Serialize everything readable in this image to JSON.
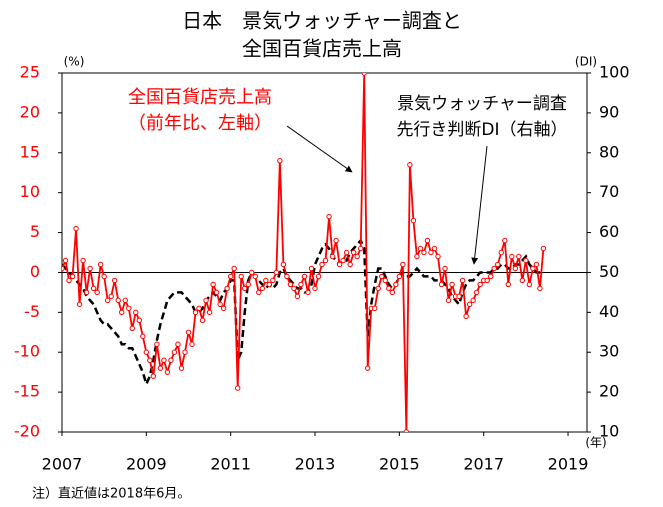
{
  "chart_data": {
    "type": "line",
    "title": [
      "日本　景気ウォッチャー調査と",
      "全国百貨店売上高"
    ],
    "y_label": "(%)",
    "y2_label": "(DI)",
    "x_label": "(年)",
    "note": "注）直近値は2018年6月。",
    "xlim": [
      2007,
      2019.45
    ],
    "xticks": [
      2007,
      2009,
      2011,
      2013,
      2015,
      2017,
      2019
    ],
    "ylim": [
      -20,
      25
    ],
    "yticks": [
      25,
      20,
      15,
      10,
      5,
      0,
      -5,
      -10,
      -15,
      -20
    ],
    "y2lim": [
      10,
      100
    ],
    "y2ticks": [
      100,
      90,
      80,
      70,
      60,
      50,
      40,
      30,
      20,
      10
    ],
    "x": [
      "2007-01",
      "2007-02",
      "2007-03",
      "2007-04",
      "2007-05",
      "2007-06",
      "2007-07",
      "2007-08",
      "2007-09",
      "2007-10",
      "2007-11",
      "2007-12",
      "2008-01",
      "2008-02",
      "2008-03",
      "2008-04",
      "2008-05",
      "2008-06",
      "2008-07",
      "2008-08",
      "2008-09",
      "2008-10",
      "2008-11",
      "2008-12",
      "2009-01",
      "2009-02",
      "2009-03",
      "2009-04",
      "2009-05",
      "2009-06",
      "2009-07",
      "2009-08",
      "2009-09",
      "2009-10",
      "2009-11",
      "2009-12",
      "2010-01",
      "2010-02",
      "2010-03",
      "2010-04",
      "2010-05",
      "2010-06",
      "2010-07",
      "2010-08",
      "2010-09",
      "2010-10",
      "2010-11",
      "2010-12",
      "2011-01",
      "2011-02",
      "2011-03",
      "2011-04",
      "2011-05",
      "2011-06",
      "2011-07",
      "2011-08",
      "2011-09",
      "2011-10",
      "2011-11",
      "2011-12",
      "2012-01",
      "2012-02",
      "2012-03",
      "2012-04",
      "2012-05",
      "2012-06",
      "2012-07",
      "2012-08",
      "2012-09",
      "2012-10",
      "2012-11",
      "2012-12",
      "2013-01",
      "2013-02",
      "2013-03",
      "2013-04",
      "2013-05",
      "2013-06",
      "2013-07",
      "2013-08",
      "2013-09",
      "2013-10",
      "2013-11",
      "2013-12",
      "2014-01",
      "2014-02",
      "2014-03",
      "2014-04",
      "2014-05",
      "2014-06",
      "2014-07",
      "2014-08",
      "2014-09",
      "2014-10",
      "2014-11",
      "2014-12",
      "2015-01",
      "2015-02",
      "2015-03",
      "2015-04",
      "2015-05",
      "2015-06",
      "2015-07",
      "2015-08",
      "2015-09",
      "2015-10",
      "2015-11",
      "2015-12",
      "2016-01",
      "2016-02",
      "2016-03",
      "2016-04",
      "2016-05",
      "2016-06",
      "2016-07",
      "2016-08",
      "2016-09",
      "2016-10",
      "2016-11",
      "2016-12",
      "2017-01",
      "2017-02",
      "2017-03",
      "2017-04",
      "2017-05",
      "2017-06",
      "2017-07",
      "2017-08",
      "2017-09",
      "2017-10",
      "2017-11",
      "2017-12",
      "2018-01",
      "2018-02",
      "2018-03",
      "2018-04",
      "2018-05",
      "2018-06"
    ],
    "series": [
      {
        "name": "全国百貨店売上高",
        "annotation": "（前年比、左軸）",
        "color": "#ff0000",
        "axis": "y",
        "markers": true,
        "values": [
          0.5,
          1.5,
          -1,
          -0.5,
          5.5,
          -4,
          1.5,
          -2.5,
          0.5,
          -2,
          -2.5,
          1,
          -0.5,
          -3.5,
          -3,
          -1,
          -3.5,
          -5,
          -3.5,
          -4.5,
          -7,
          -5,
          -6,
          -8,
          -10,
          -11,
          -13,
          -9,
          -12,
          -11,
          -12.5,
          -11,
          -10,
          -9,
          -12,
          -10,
          -7.5,
          -9,
          -5,
          -4.5,
          -6,
          -3.5,
          -5,
          -1.5,
          -2.5,
          -4,
          -4.5,
          -2,
          -0.5,
          0.5,
          -14.5,
          -0.5,
          -2,
          -1.5,
          0,
          -0.5,
          -2.5,
          -2,
          -1,
          -1.5,
          -1,
          0,
          14,
          1,
          -0.5,
          -1.5,
          -2,
          -3,
          -1.5,
          -0.5,
          -2.5,
          0.5,
          -2,
          -0.5,
          1,
          1.5,
          7,
          2,
          4,
          1,
          1.5,
          2.5,
          1,
          2.5,
          2,
          3,
          25,
          -12,
          -4.5,
          -4.5,
          -2,
          -0.5,
          -1,
          -2,
          -2.5,
          -1.5,
          -0.5,
          1,
          -20,
          13.5,
          6.5,
          2,
          3,
          2.5,
          4,
          2.5,
          3,
          2,
          -1.5,
          0.5,
          -3.5,
          -1.5,
          -3,
          -3,
          -1,
          -5.5,
          -4,
          -3.5,
          -2.5,
          -1.5,
          -1,
          -1,
          -0.5,
          0.5,
          1,
          2.5,
          4,
          -1.5,
          2,
          0.5,
          2,
          -1,
          1.5,
          -1.5,
          0.5,
          1,
          -2,
          3
        ]
      },
      {
        "name": "景気ウォッチャー調査",
        "annotation": "先行き判断DI（右軸）",
        "color": "#000000",
        "axis": "y2",
        "dashed": true,
        "values": [
          52,
          51,
          50,
          49,
          48,
          47,
          46,
          44,
          43,
          42,
          40,
          38,
          37,
          37,
          36,
          35,
          34,
          32,
          32,
          31,
          31,
          29,
          27,
          25,
          22,
          24,
          28,
          33,
          37,
          40,
          43,
          44,
          45,
          45,
          45,
          44,
          43,
          42,
          40,
          40,
          41,
          43,
          44,
          45,
          44,
          43,
          45,
          46,
          48,
          48,
          28,
          30,
          40,
          48,
          50,
          49,
          48,
          47,
          46,
          47,
          46,
          47,
          50,
          51,
          49,
          48,
          47,
          46,
          46,
          45,
          45,
          47,
          52,
          54,
          56,
          57,
          56,
          54,
          53,
          52,
          53,
          53,
          55,
          56,
          57,
          58,
          56,
          34,
          42,
          47,
          51,
          51,
          49,
          47,
          46,
          47,
          49,
          50,
          49,
          49,
          50,
          51,
          50,
          49,
          49,
          49,
          48,
          48,
          48,
          47,
          46,
          44,
          43,
          42,
          45,
          47,
          48,
          48,
          49,
          50,
          50,
          50,
          50,
          51,
          51,
          52,
          52,
          51,
          51,
          52,
          52,
          53,
          54,
          52,
          51,
          50,
          50,
          50
        ]
      }
    ]
  }
}
